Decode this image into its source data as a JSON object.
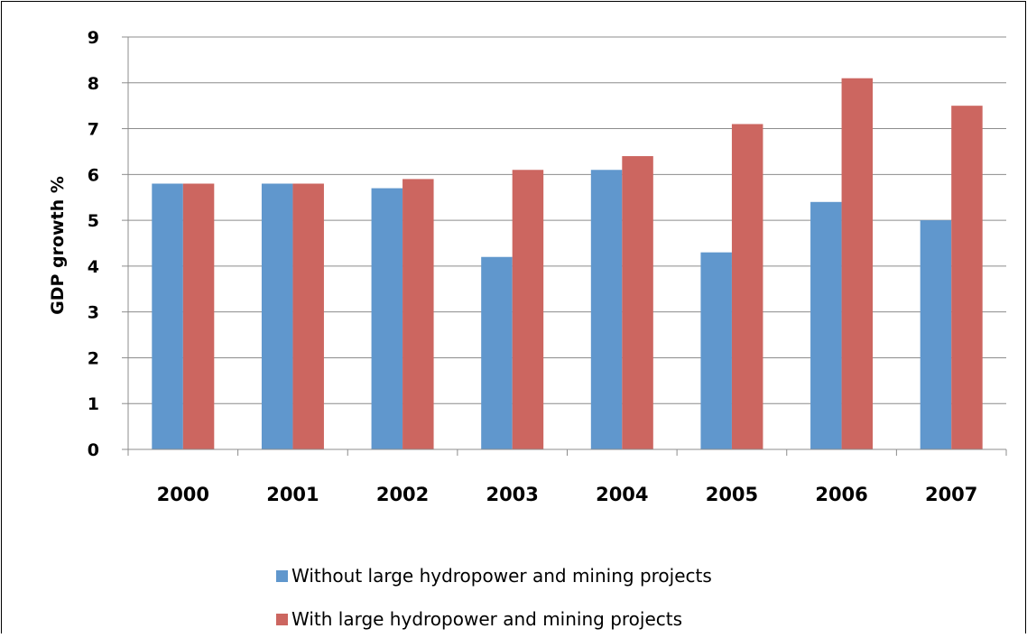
{
  "chart_data": {
    "type": "bar",
    "title": "",
    "xlabel": "",
    "ylabel": "GDP growth %",
    "categories": [
      "2000",
      "2001",
      "2002",
      "2003",
      "2004",
      "2005",
      "2006",
      "2007"
    ],
    "series": [
      {
        "name": "Without large hydropower and mining projects",
        "color": "#6097CD",
        "values": [
          5.8,
          5.8,
          5.7,
          4.2,
          6.1,
          4.3,
          5.4,
          5.0
        ]
      },
      {
        "name": "With large hydropower and mining projects",
        "color": "#CC6660",
        "values": [
          5.8,
          5.8,
          5.9,
          6.1,
          6.4,
          7.1,
          8.1,
          7.5
        ]
      }
    ],
    "ylim": [
      0,
      9
    ],
    "yticks": [
      "0",
      "1",
      "2",
      "3",
      "4",
      "5",
      "6",
      "7",
      "8",
      "9"
    ],
    "grid": true,
    "legend_position": "bottom"
  }
}
